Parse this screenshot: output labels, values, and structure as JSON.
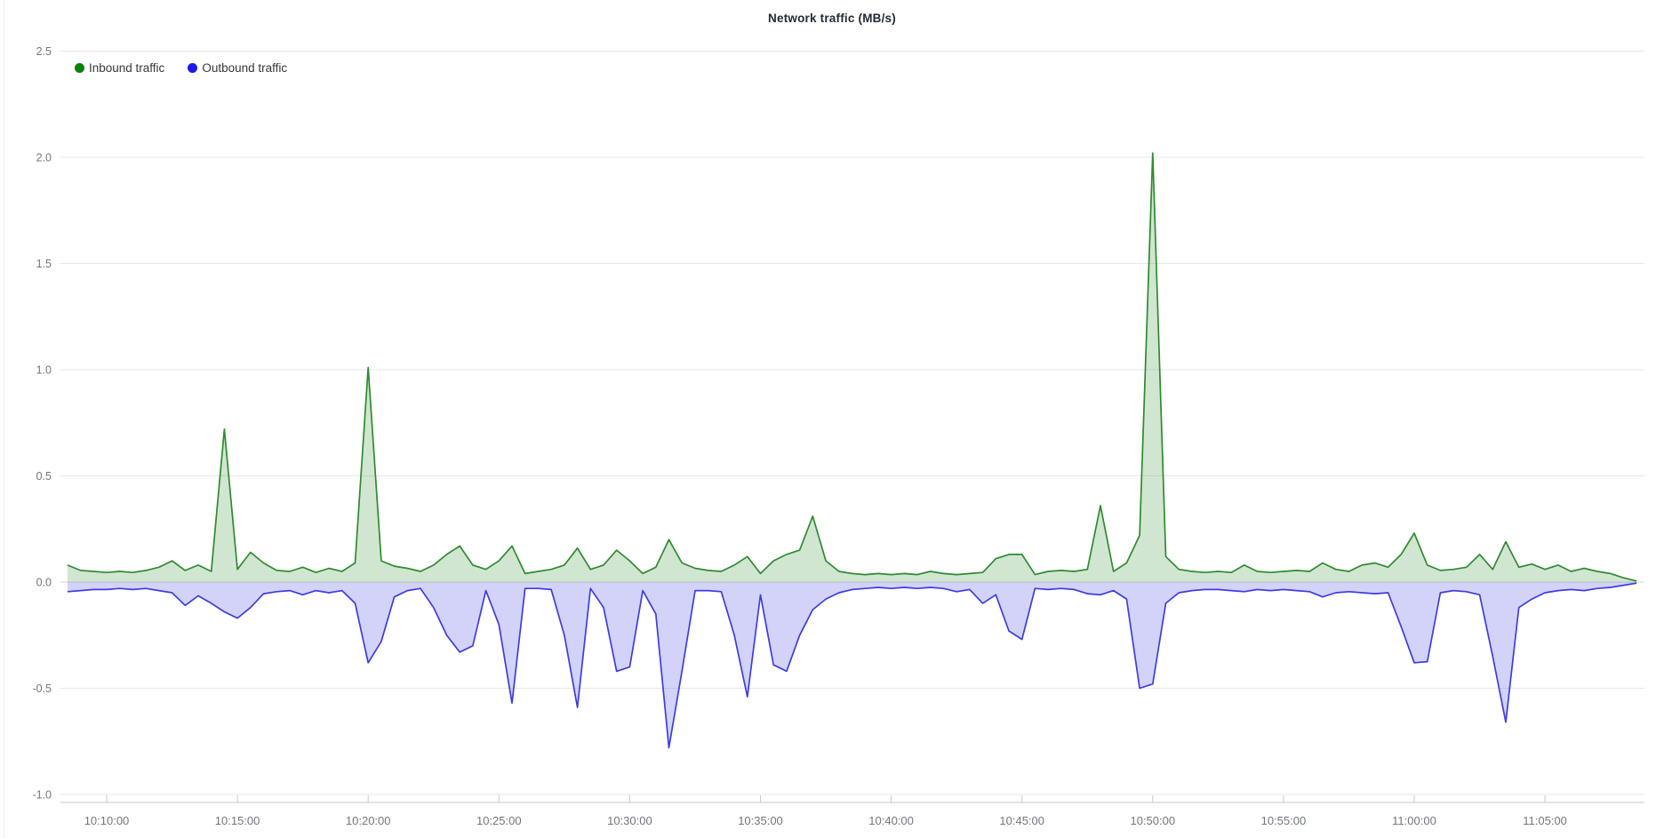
{
  "chart_data": {
    "type": "area",
    "title": "Network traffic (MB/s)",
    "x_start": "10:08:30",
    "x_end": "11:08:30",
    "interval_seconds": 30,
    "ylim": [
      -1.0,
      2.5
    ],
    "grid": "horizontal",
    "legend_position": "top-left",
    "x_axis": {
      "tick_labels": [
        "10:10:00",
        "10:15:00",
        "10:20:00",
        "10:25:00",
        "10:30:00",
        "10:35:00",
        "10:40:00",
        "10:45:00",
        "10:50:00",
        "10:55:00",
        "11:00:00",
        "11:05:00"
      ]
    },
    "y_axis": {
      "tick_labels": [
        "2.5",
        "2.0",
        "1.5",
        "1.0",
        "0.5",
        "0.0",
        "-0.5",
        "-1.0"
      ]
    },
    "colors": {
      "grid": "#e7e7e7",
      "zero_line": "#d6d6d6",
      "axis_line": "#c9c9c9",
      "axis_text": "#707780"
    },
    "series": [
      {
        "name": "Inbound traffic",
        "legend_color": "#0b800b",
        "stroke": "#2e8b2e",
        "fill": "rgba(46,139,46,0.22)",
        "area_name": "inbound-area",
        "line_name": "inbound-line",
        "values": [
          0.08,
          0.055,
          0.05,
          0.045,
          0.05,
          0.045,
          0.055,
          0.07,
          0.1,
          0.055,
          0.08,
          0.05,
          0.72,
          0.06,
          0.14,
          0.09,
          0.055,
          0.05,
          0.07,
          0.045,
          0.065,
          0.05,
          0.09,
          1.01,
          0.1,
          0.075,
          0.065,
          0.05,
          0.08,
          0.13,
          0.17,
          0.08,
          0.06,
          0.1,
          0.17,
          0.04,
          0.05,
          0.06,
          0.08,
          0.16,
          0.06,
          0.08,
          0.15,
          0.1,
          0.04,
          0.07,
          0.2,
          0.09,
          0.065,
          0.055,
          0.05,
          0.08,
          0.12,
          0.04,
          0.1,
          0.13,
          0.15,
          0.31,
          0.1,
          0.05,
          0.04,
          0.035,
          0.04,
          0.035,
          0.04,
          0.035,
          0.05,
          0.04,
          0.035,
          0.04,
          0.045,
          0.11,
          0.13,
          0.13,
          0.035,
          0.05,
          0.055,
          0.05,
          0.06,
          0.36,
          0.05,
          0.09,
          0.22,
          2.02,
          0.12,
          0.06,
          0.05,
          0.045,
          0.05,
          0.045,
          0.08,
          0.05,
          0.045,
          0.05,
          0.055,
          0.05,
          0.09,
          0.06,
          0.05,
          0.08,
          0.09,
          0.07,
          0.13,
          0.23,
          0.08,
          0.055,
          0.06,
          0.07,
          0.13,
          0.06,
          0.19,
          0.07,
          0.085,
          0.06,
          0.08,
          0.05,
          0.065,
          0.05,
          0.04,
          0.02,
          0.005
        ]
      },
      {
        "name": "Outbound traffic",
        "legend_color": "#1a1af0",
        "stroke": "#3c3ce6",
        "fill": "rgba(80,80,230,0.25)",
        "area_name": "outbound-area",
        "line_name": "outbound-line",
        "values": [
          -0.045,
          -0.04,
          -0.035,
          -0.035,
          -0.03,
          -0.035,
          -0.03,
          -0.04,
          -0.05,
          -0.11,
          -0.065,
          -0.1,
          -0.14,
          -0.17,
          -0.12,
          -0.055,
          -0.045,
          -0.04,
          -0.06,
          -0.04,
          -0.05,
          -0.04,
          -0.1,
          -0.38,
          -0.28,
          -0.07,
          -0.04,
          -0.03,
          -0.12,
          -0.25,
          -0.33,
          -0.3,
          -0.04,
          -0.2,
          -0.57,
          -0.03,
          -0.03,
          -0.035,
          -0.25,
          -0.59,
          -0.03,
          -0.12,
          -0.42,
          -0.4,
          -0.04,
          -0.15,
          -0.78,
          -0.42,
          -0.04,
          -0.04,
          -0.045,
          -0.25,
          -0.54,
          -0.06,
          -0.39,
          -0.42,
          -0.25,
          -0.13,
          -0.08,
          -0.05,
          -0.035,
          -0.03,
          -0.025,
          -0.03,
          -0.025,
          -0.03,
          -0.025,
          -0.03,
          -0.045,
          -0.035,
          -0.1,
          -0.06,
          -0.23,
          -0.27,
          -0.03,
          -0.035,
          -0.03,
          -0.035,
          -0.055,
          -0.06,
          -0.04,
          -0.08,
          -0.5,
          -0.48,
          -0.1,
          -0.05,
          -0.04,
          -0.035,
          -0.035,
          -0.04,
          -0.045,
          -0.035,
          -0.04,
          -0.035,
          -0.04,
          -0.045,
          -0.07,
          -0.05,
          -0.045,
          -0.05,
          -0.055,
          -0.05,
          -0.21,
          -0.38,
          -0.375,
          -0.05,
          -0.04,
          -0.045,
          -0.06,
          -0.35,
          -0.66,
          -0.12,
          -0.08,
          -0.05,
          -0.04,
          -0.035,
          -0.04,
          -0.03,
          -0.025,
          -0.015,
          -0.005
        ]
      }
    ]
  }
}
